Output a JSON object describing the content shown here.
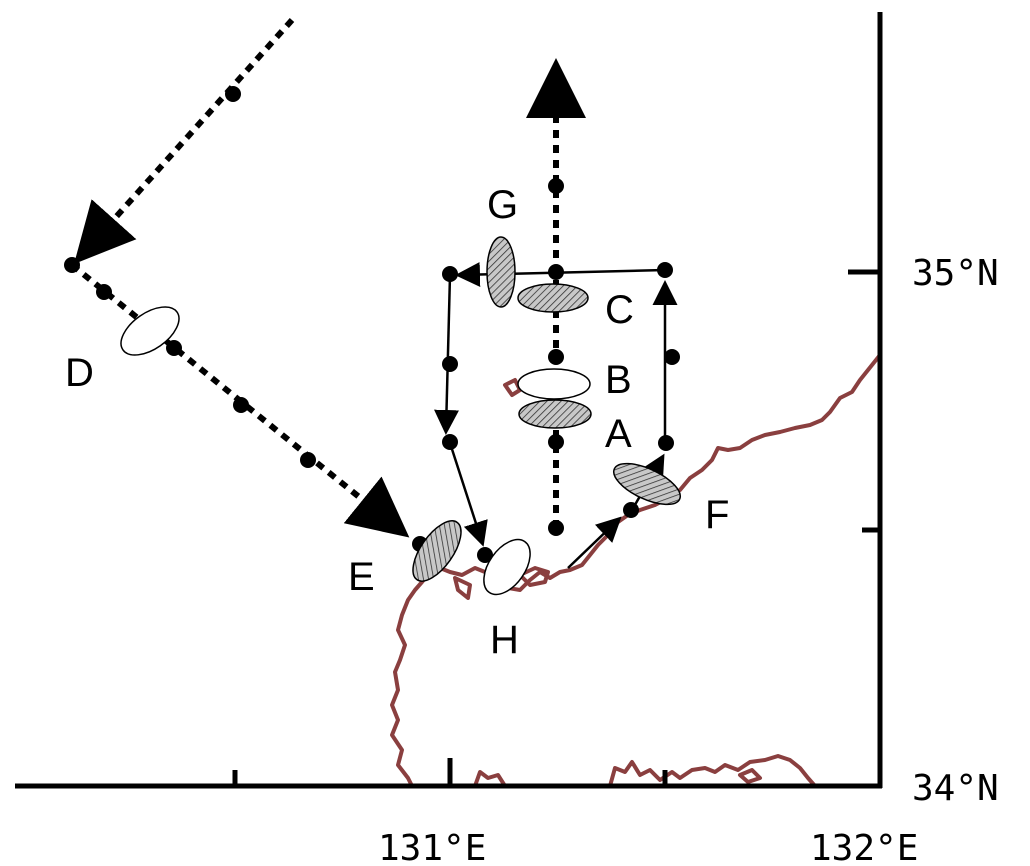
{
  "axes": {
    "lat_labels": [
      "35°N",
      "34°N"
    ],
    "lon_labels": [
      "131°E",
      "132°E"
    ]
  },
  "colors": {
    "coast": "#8a3f3f",
    "track": "#000000",
    "hatched_fill": "#a8a8a8"
  },
  "sites": {
    "A": "A",
    "B": "B",
    "C": "C",
    "D": "D",
    "E": "E",
    "F": "F",
    "G": "G",
    "H": "H"
  },
  "legend_note": ""
}
